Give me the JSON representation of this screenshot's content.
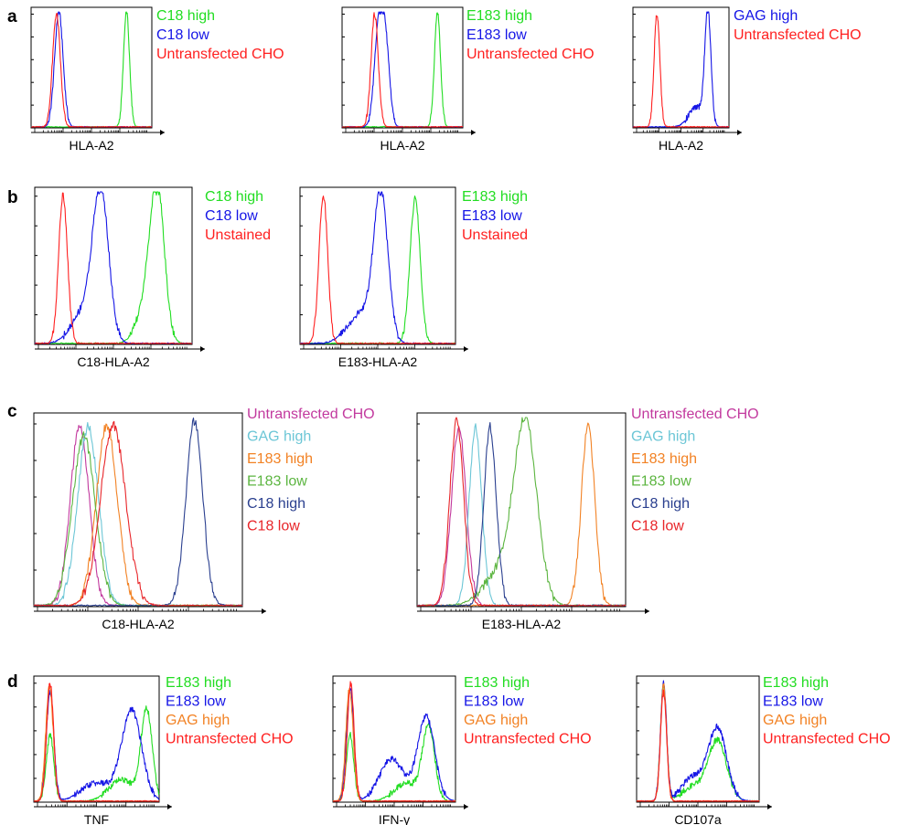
{
  "colors": {
    "green": "#22dd22",
    "blue": "#1515e6",
    "red": "#ff2020",
    "magenta": "#c2399e",
    "cyan": "#6cc6d6",
    "orange": "#f28224",
    "olive_green": "#5cb540",
    "navy": "#2a3f8f",
    "crimson": "#e8262a"
  },
  "panels": [
    {
      "letter": "a"
    },
    {
      "letter": "b"
    },
    {
      "letter": "c"
    },
    {
      "letter": "d"
    }
  ],
  "chart_data": [
    {
      "type": "area",
      "panel": "a",
      "xlabel": "HLA-A2",
      "x_scale": "log",
      "xlim": [
        0,
        10
      ],
      "ylim": [
        0,
        1
      ],
      "series": [
        {
          "name": "C18 high",
          "color": "green",
          "peaks": [
            [
              7.9,
              1.0,
              0.25
            ]
          ]
        },
        {
          "name": "C18 low",
          "color": "blue",
          "peaks": [
            [
              2.3,
              1.0,
              0.35
            ]
          ]
        },
        {
          "name": "Untransfected CHO",
          "color": "red",
          "peaks": [
            [
              2.1,
              0.98,
              0.32
            ]
          ]
        }
      ]
    },
    {
      "type": "area",
      "panel": "a",
      "xlabel": "HLA-A2",
      "x_scale": "log",
      "xlim": [
        0,
        10
      ],
      "ylim": [
        0,
        1
      ],
      "series": [
        {
          "name": "E183 high",
          "color": "green",
          "peaks": [
            [
              7.9,
              1.0,
              0.25
            ]
          ]
        },
        {
          "name": "E183 low",
          "color": "blue",
          "peaks": [
            [
              3.1,
              1.0,
              0.38
            ],
            [
              3.7,
              0.5,
              0.3
            ]
          ]
        },
        {
          "name": "Untransfected CHO",
          "color": "red",
          "peaks": [
            [
              2.7,
              0.98,
              0.3
            ]
          ]
        }
      ]
    },
    {
      "type": "area",
      "panel": "a",
      "xlabel": "HLA-A2",
      "x_scale": "log",
      "xlim": [
        0,
        10
      ],
      "ylim": [
        0,
        1
      ],
      "series": [
        {
          "name": "GAG high",
          "color": "blue",
          "peaks": [
            [
              7.8,
              0.98,
              0.32
            ],
            [
              6.6,
              0.17,
              0.8
            ]
          ]
        },
        {
          "name": "Untransfected CHO",
          "color": "red",
          "peaks": [
            [
              2.5,
              0.98,
              0.3
            ]
          ]
        }
      ]
    },
    {
      "type": "area",
      "panel": "b",
      "xlabel": "C18-HLA-A2",
      "x_scale": "log",
      "xlim": [
        0,
        10
      ],
      "ylim": [
        0,
        1
      ],
      "series": [
        {
          "name": "C18 high",
          "color": "green",
          "peaks": [
            [
              7.8,
              0.95,
              0.45
            ],
            [
              7.1,
              0.25,
              0.6
            ]
          ]
        },
        {
          "name": "C18 low",
          "color": "blue",
          "peaks": [
            [
              4.2,
              0.95,
              0.5
            ],
            [
              3.2,
              0.22,
              0.8
            ]
          ]
        },
        {
          "name": "Unstained",
          "color": "red",
          "peaks": [
            [
              1.8,
              0.98,
              0.28
            ]
          ]
        }
      ]
    },
    {
      "type": "area",
      "panel": "b",
      "xlabel": "E183-HLA-A2",
      "x_scale": "log",
      "xlim": [
        0,
        10
      ],
      "ylim": [
        0,
        1
      ],
      "series": [
        {
          "name": "E183 high",
          "color": "green",
          "peaks": [
            [
              7.4,
              0.95,
              0.33
            ]
          ]
        },
        {
          "name": "E183 low",
          "color": "blue",
          "peaks": [
            [
              5.2,
              0.95,
              0.45
            ],
            [
              4.0,
              0.2,
              0.9
            ]
          ]
        },
        {
          "name": "Unstained",
          "color": "red",
          "peaks": [
            [
              1.5,
              0.98,
              0.28
            ]
          ]
        }
      ]
    },
    {
      "type": "area",
      "panel": "c",
      "xlabel": "C18-HLA-A2",
      "x_scale": "log",
      "xlim": [
        0,
        10
      ],
      "ylim": [
        0,
        1
      ],
      "series": [
        {
          "name": "Untransfected CHO",
          "color": "magenta",
          "peaks": [
            [
              2.2,
              0.95,
              0.45
            ]
          ]
        },
        {
          "name": "GAG high",
          "color": "cyan",
          "peaks": [
            [
              2.6,
              0.95,
              0.5
            ]
          ]
        },
        {
          "name": "E183 high",
          "color": "orange",
          "peaks": [
            [
              3.5,
              0.96,
              0.5
            ]
          ]
        },
        {
          "name": "E183 low",
          "color": "olive_green",
          "peaks": [
            [
              2.4,
              0.9,
              0.55
            ]
          ]
        },
        {
          "name": "C18 high",
          "color": "navy",
          "peaks": [
            [
              7.7,
              0.98,
              0.4
            ]
          ]
        },
        {
          "name": "C18 low",
          "color": "crimson",
          "peaks": [
            [
              3.8,
              0.96,
              0.6
            ]
          ]
        }
      ]
    },
    {
      "type": "area",
      "panel": "c",
      "xlabel": "E183-HLA-A2",
      "x_scale": "log",
      "xlim": [
        0,
        10
      ],
      "ylim": [
        0,
        1
      ],
      "series": [
        {
          "name": "Untransfected CHO",
          "color": "magenta",
          "peaks": [
            [
              2.0,
              0.95,
              0.35
            ]
          ]
        },
        {
          "name": "GAG high",
          "color": "cyan",
          "peaks": [
            [
              2.8,
              0.95,
              0.3
            ]
          ]
        },
        {
          "name": "E183 high",
          "color": "orange",
          "peaks": [
            [
              8.2,
              0.96,
              0.32
            ]
          ]
        },
        {
          "name": "E183 low",
          "color": "olive_green",
          "peaks": [
            [
              5.2,
              0.95,
              0.55
            ],
            [
              4.0,
              0.18,
              0.8
            ]
          ]
        },
        {
          "name": "C18 high",
          "color": "navy",
          "peaks": [
            [
              3.5,
              0.95,
              0.3
            ]
          ]
        },
        {
          "name": "C18 low",
          "color": "crimson",
          "peaks": [
            [
              1.9,
              0.98,
              0.33
            ]
          ]
        }
      ]
    },
    {
      "type": "area",
      "panel": "d",
      "xlabel": "TNF",
      "x_scale": "log",
      "xlim": [
        0,
        10
      ],
      "ylim": [
        0,
        1
      ],
      "series": [
        {
          "name": "E183 high",
          "color": "green",
          "peaks": [
            [
              1.3,
              0.55,
              0.3
            ],
            [
              9.0,
              0.75,
              0.45
            ],
            [
              7.0,
              0.18,
              1.0
            ]
          ]
        },
        {
          "name": "E183 low",
          "color": "blue",
          "peaks": [
            [
              1.3,
              0.9,
              0.3
            ],
            [
              7.8,
              0.75,
              0.8
            ],
            [
              5.0,
              0.15,
              1.2
            ]
          ]
        },
        {
          "name": "GAG high",
          "color": "orange",
          "peaks": [
            [
              1.25,
              0.95,
              0.3
            ]
          ]
        },
        {
          "name": "Untransfected CHO",
          "color": "red",
          "peaks": [
            [
              1.3,
              0.98,
              0.28
            ]
          ]
        }
      ]
    },
    {
      "type": "area",
      "panel": "d",
      "xlabel": "IFN-γ",
      "x_scale": "log",
      "xlim": [
        0,
        10
      ],
      "ylim": [
        0,
        1
      ],
      "series": [
        {
          "name": "E183 high",
          "color": "green",
          "peaks": [
            [
              1.4,
              0.55,
              0.3
            ],
            [
              7.8,
              0.6,
              0.5
            ],
            [
              6.0,
              0.15,
              1.0
            ]
          ]
        },
        {
          "name": "E183 low",
          "color": "blue",
          "peaks": [
            [
              1.4,
              0.95,
              0.3
            ],
            [
              7.6,
              0.7,
              0.7
            ],
            [
              4.8,
              0.35,
              1.0
            ]
          ]
        },
        {
          "name": "GAG high",
          "color": "orange",
          "peaks": [
            [
              1.35,
              0.93,
              0.3
            ]
          ]
        },
        {
          "name": "Untransfected CHO",
          "color": "red",
          "peaks": [
            [
              1.45,
              0.98,
              0.28
            ]
          ]
        }
      ]
    },
    {
      "type": "area",
      "panel": "d",
      "xlabel": "CD107a",
      "x_scale": "log",
      "xlim": [
        0,
        10
      ],
      "ylim": [
        0,
        1
      ],
      "series": [
        {
          "name": "E183 high",
          "color": "green",
          "peaks": [
            [
              2.2,
              0.95,
              0.25
            ],
            [
              6.6,
              0.5,
              0.75
            ],
            [
              4.6,
              0.12,
              0.9
            ]
          ]
        },
        {
          "name": "E183 low",
          "color": "blue",
          "peaks": [
            [
              2.2,
              0.98,
              0.25
            ],
            [
              6.6,
              0.6,
              0.75
            ],
            [
              4.6,
              0.2,
              0.9
            ]
          ]
        },
        {
          "name": "GAG high",
          "color": "orange",
          "peaks": [
            [
              2.2,
              0.97,
              0.25
            ]
          ]
        },
        {
          "name": "Untransfected CHO",
          "color": "red",
          "peaks": [
            [
              2.2,
              0.9,
              0.25
            ]
          ]
        }
      ]
    }
  ]
}
